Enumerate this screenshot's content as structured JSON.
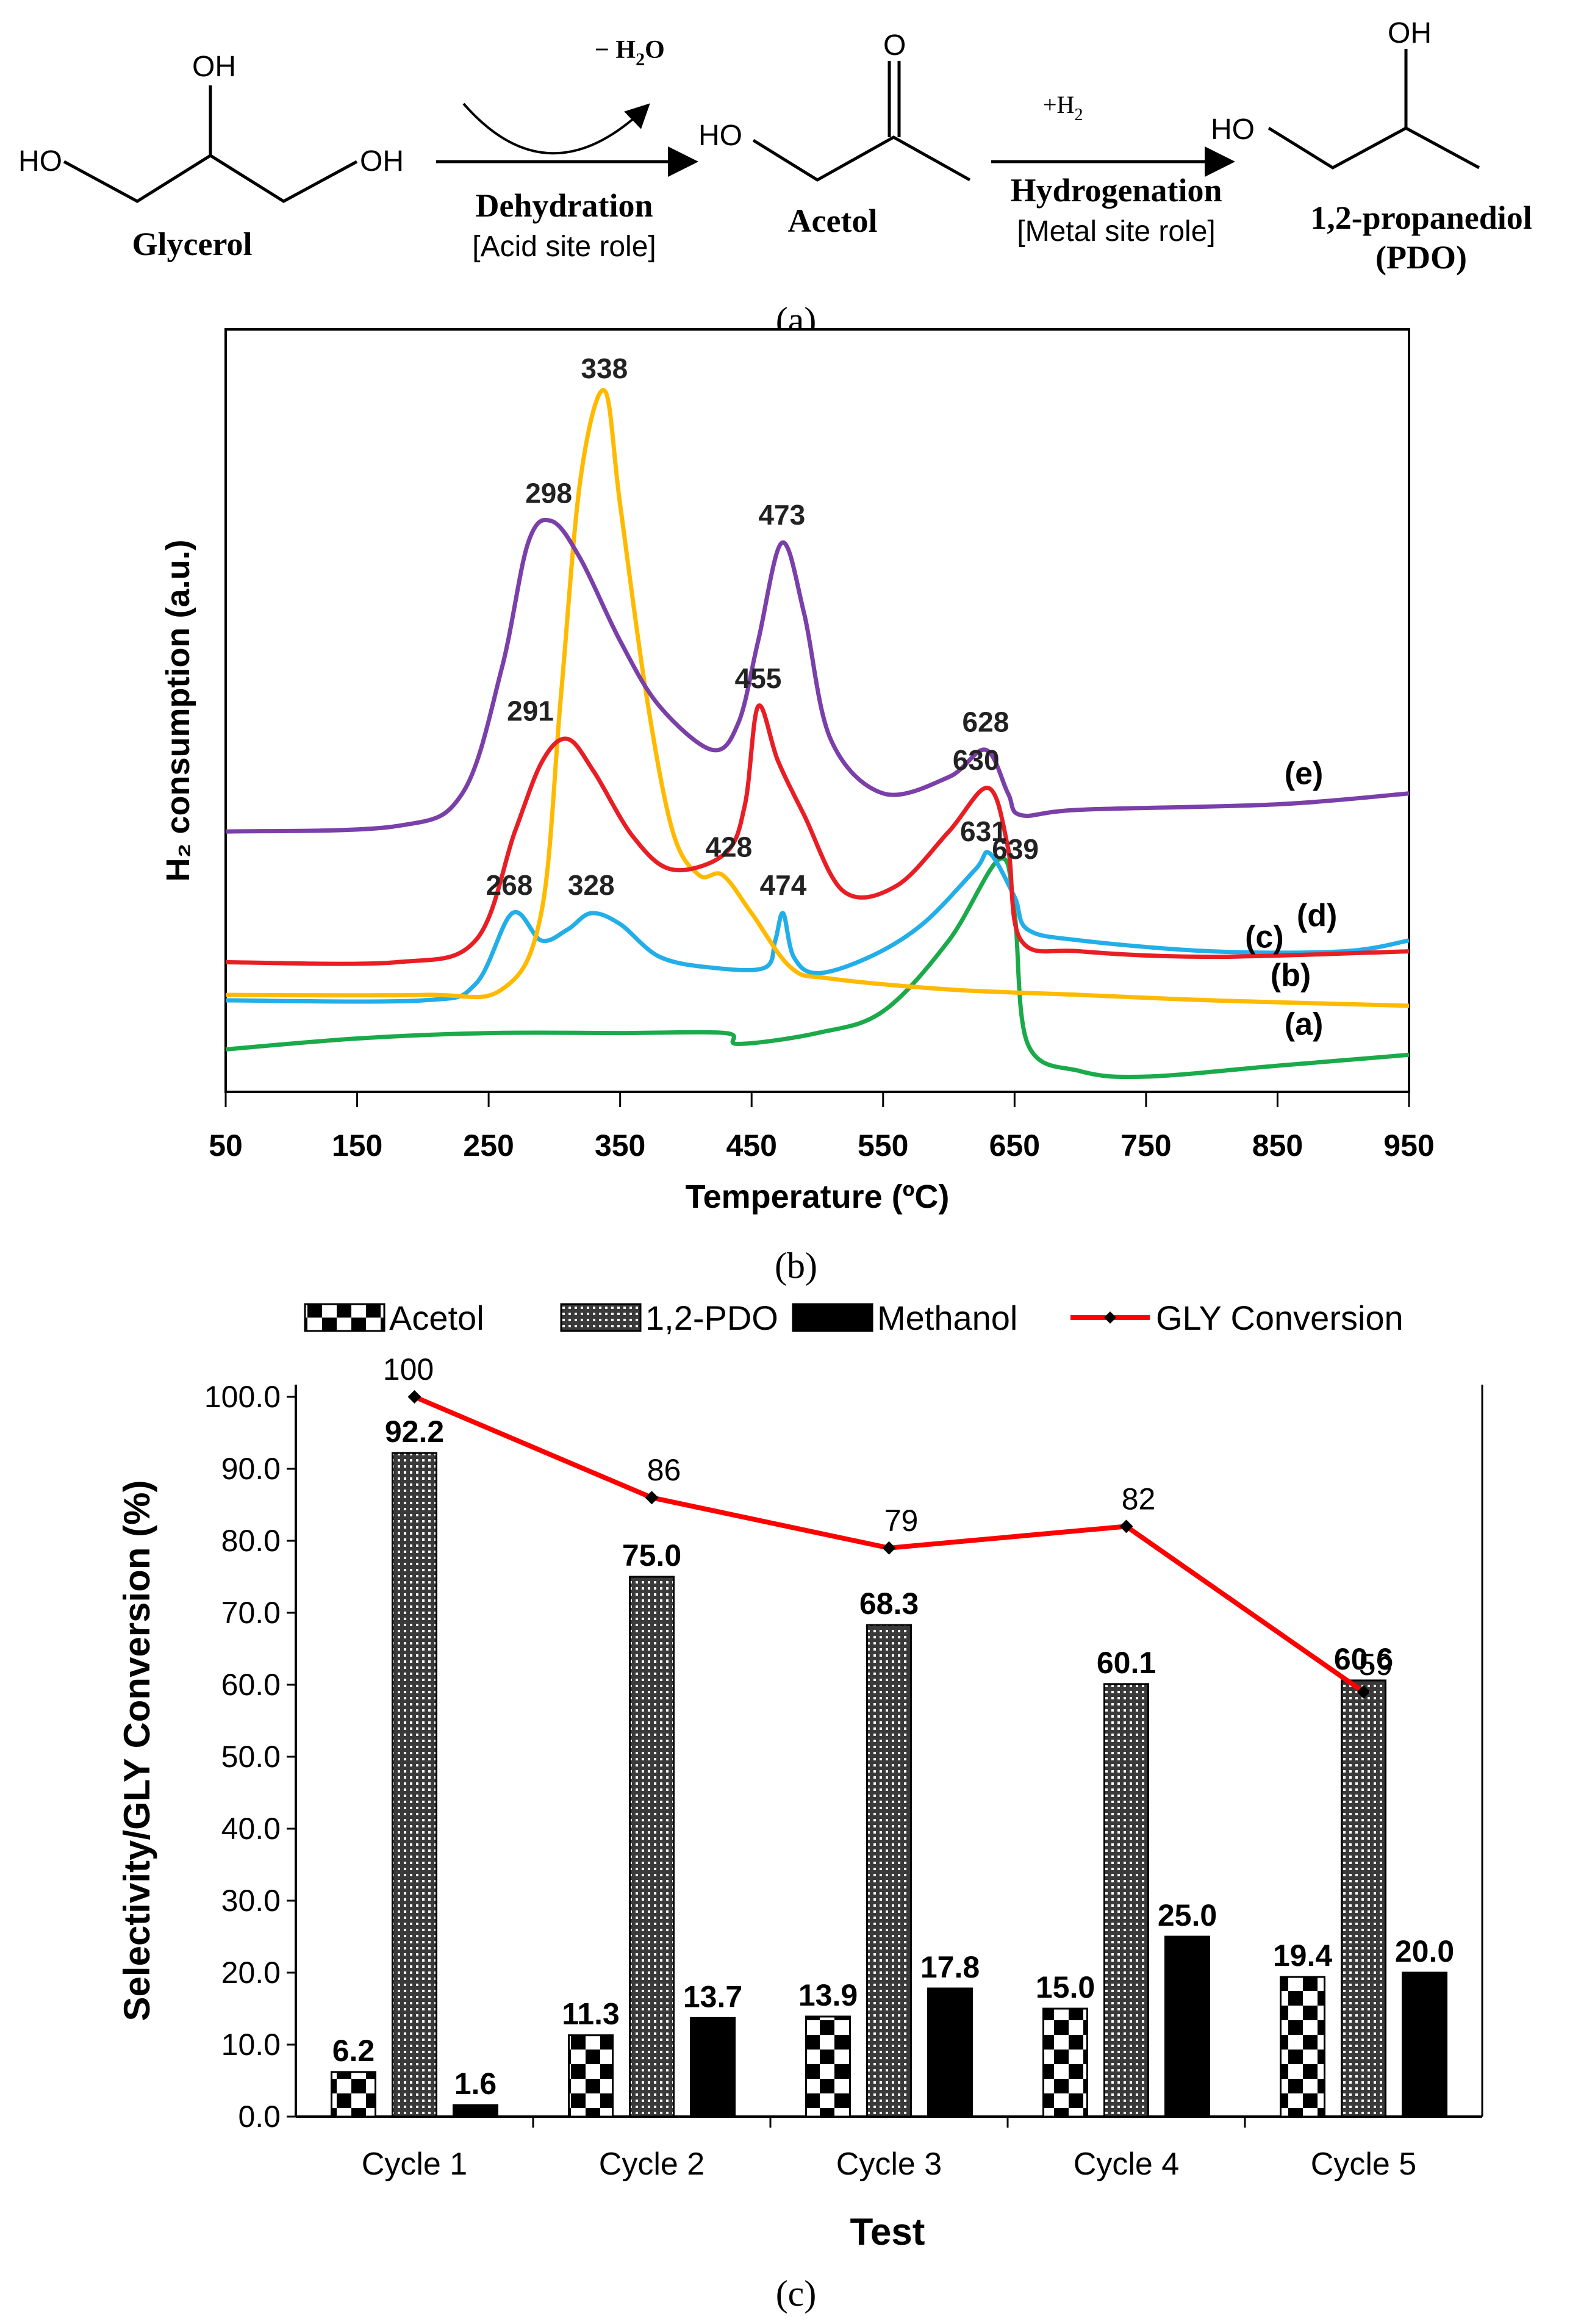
{
  "scheme": {
    "glycerol": {
      "name": "Glycerol",
      "oh_top": "OH",
      "ho_left": "HO",
      "oh_right": "OH"
    },
    "step1": {
      "byproduct": "− H",
      "byproduct_sub": "2",
      "byproduct_tail": "O",
      "name": "Dehydration",
      "role": "[Acid site role]"
    },
    "acetol": {
      "name": "Acetol",
      "o": "O",
      "ho": "HO"
    },
    "step2": {
      "reagent": "+H",
      "reagent_sub": "2",
      "name": "Hydrogenation",
      "role": "[Metal site role]"
    },
    "pdo": {
      "name": "1,2-propanediol",
      "abbr": "(PDO)",
      "oh": "OH",
      "ho": "HO"
    }
  },
  "panel_labels": {
    "a": "(a)",
    "b": "(b)",
    "c": "(c)"
  },
  "colors": {
    "a": "#1aaa4a",
    "b": "#22aee8",
    "c": "#ffba00",
    "d": "#e81e24",
    "e": "#7a3fa8",
    "conversion": "#ff0000"
  },
  "chart_data": [
    {
      "type": "line",
      "title": "",
      "xlabel": "Temperature (ºC)",
      "ylabel": "H₂ consumption (a.u.)",
      "xlim": [
        50,
        950
      ],
      "xticks": [
        50,
        150,
        250,
        350,
        450,
        550,
        650,
        750,
        850,
        950
      ],
      "series": [
        {
          "name": "(a)",
          "points": [
            [
              50,
              0.05
            ],
            [
              150,
              0.07
            ],
            [
              250,
              0.08
            ],
            [
              350,
              0.08
            ],
            [
              430,
              0.08
            ],
            [
              440,
              0.06
            ],
            [
              500,
              0.08
            ],
            [
              550,
              0.12
            ],
            [
              600,
              0.25
            ],
            [
              639,
              0.4
            ],
            [
              650,
              0.3
            ],
            [
              660,
              0.06
            ],
            [
              700,
              0.01
            ],
            [
              750,
              0.0
            ],
            [
              850,
              0.02
            ],
            [
              950,
              0.04
            ]
          ],
          "peaks": [
            639
          ]
        },
        {
          "name": "(b)",
          "points": [
            [
              50,
              0.14
            ],
            [
              200,
              0.14
            ],
            [
              240,
              0.17
            ],
            [
              268,
              0.3
            ],
            [
              290,
              0.25
            ],
            [
              310,
              0.27
            ],
            [
              328,
              0.3
            ],
            [
              350,
              0.28
            ],
            [
              380,
              0.22
            ],
            [
              420,
              0.2
            ],
            [
              460,
              0.2
            ],
            [
              468,
              0.25
            ],
            [
              474,
              0.3
            ],
            [
              482,
              0.22
            ],
            [
              500,
              0.19
            ],
            [
              540,
              0.22
            ],
            [
              580,
              0.28
            ],
            [
              620,
              0.38
            ],
            [
              631,
              0.41
            ],
            [
              650,
              0.33
            ],
            [
              660,
              0.27
            ],
            [
              700,
              0.25
            ],
            [
              800,
              0.23
            ],
            [
              900,
              0.23
            ],
            [
              950,
              0.25
            ]
          ],
          "peaks": [
            268,
            328,
            474,
            631
          ]
        },
        {
          "name": "(c)",
          "points": [
            [
              50,
              0.15
            ],
            [
              200,
              0.15
            ],
            [
              260,
              0.16
            ],
            [
              290,
              0.3
            ],
            [
              305,
              0.7
            ],
            [
              320,
              1.1
            ],
            [
              338,
              1.26
            ],
            [
              350,
              1.05
            ],
            [
              370,
              0.7
            ],
            [
              390,
              0.45
            ],
            [
              410,
              0.37
            ],
            [
              428,
              0.37
            ],
            [
              450,
              0.3
            ],
            [
              480,
              0.2
            ],
            [
              510,
              0.18
            ],
            [
              600,
              0.16
            ],
            [
              700,
              0.15
            ],
            [
              800,
              0.14
            ],
            [
              950,
              0.13
            ]
          ],
          "peaks": [
            338,
            428
          ]
        },
        {
          "name": "(d)",
          "points": [
            [
              50,
              0.21
            ],
            [
              180,
              0.21
            ],
            [
              240,
              0.25
            ],
            [
              270,
              0.45
            ],
            [
              291,
              0.58
            ],
            [
              310,
              0.62
            ],
            [
              330,
              0.56
            ],
            [
              360,
              0.44
            ],
            [
              390,
              0.38
            ],
            [
              430,
              0.41
            ],
            [
              445,
              0.5
            ],
            [
              455,
              0.68
            ],
            [
              470,
              0.58
            ],
            [
              490,
              0.48
            ],
            [
              520,
              0.34
            ],
            [
              560,
              0.35
            ],
            [
              600,
              0.45
            ],
            [
              630,
              0.53
            ],
            [
              645,
              0.42
            ],
            [
              655,
              0.25
            ],
            [
              700,
              0.23
            ],
            [
              800,
              0.22
            ],
            [
              950,
              0.23
            ]
          ],
          "peaks": [
            291,
            455,
            630
          ]
        },
        {
          "name": "(e)",
          "points": [
            [
              50,
              0.45
            ],
            [
              180,
              0.46
            ],
            [
              230,
              0.52
            ],
            [
              260,
              0.75
            ],
            [
              280,
              0.98
            ],
            [
              298,
              1.02
            ],
            [
              320,
              0.95
            ],
            [
              350,
              0.8
            ],
            [
              380,
              0.68
            ],
            [
              420,
              0.6
            ],
            [
              440,
              0.65
            ],
            [
              455,
              0.8
            ],
            [
              473,
              0.98
            ],
            [
              490,
              0.85
            ],
            [
              510,
              0.62
            ],
            [
              550,
              0.52
            ],
            [
              600,
              0.55
            ],
            [
              628,
              0.6
            ],
            [
              645,
              0.52
            ],
            [
              655,
              0.48
            ],
            [
              700,
              0.49
            ],
            [
              850,
              0.5
            ],
            [
              950,
              0.52
            ]
          ],
          "peaks": [
            298,
            473,
            628
          ]
        }
      ],
      "peak_labels": [
        "268",
        "328",
        "474",
        "631",
        "338",
        "428",
        "291",
        "455",
        "630",
        "298",
        "473",
        "628",
        "639"
      ],
      "curve_labels": [
        "(a)",
        "(b)",
        "(c)",
        "(d)",
        "(e)"
      ],
      "grid": false
    },
    {
      "type": "bar",
      "title": "",
      "xlabel": "Test",
      "ylabel": "Selectivity/GLY Conversion (%)",
      "ylim": [
        0,
        100
      ],
      "yticks": [
        "0.0",
        "10.0",
        "20.0",
        "30.0",
        "40.0",
        "50.0",
        "60.0",
        "70.0",
        "80.0",
        "90.0",
        "100.0"
      ],
      "categories": [
        "Cycle 1",
        "Cycle 2",
        "Cycle 3",
        "Cycle 4",
        "Cycle 5"
      ],
      "series": [
        {
          "name": "Acetol",
          "values": [
            6.2,
            11.3,
            13.9,
            15.0,
            19.4
          ],
          "labels": [
            "6.2",
            "11.3",
            "13.9",
            "15.0",
            "19.4"
          ]
        },
        {
          "name": "1,2-PDO",
          "values": [
            92.2,
            75.0,
            68.3,
            60.1,
            60.6
          ],
          "labels": [
            "92.2",
            "75.0",
            "68.3",
            "60.1",
            "60.6"
          ]
        },
        {
          "name": "Methanol",
          "values": [
            1.6,
            13.7,
            17.8,
            25.0,
            20.0
          ],
          "labels": [
            "1.6",
            "13.7",
            "17.8",
            "25.0",
            "20.0"
          ]
        },
        {
          "name": "GLY Conversion",
          "type": "line",
          "values": [
            100,
            86,
            79,
            82,
            59
          ],
          "labels": [
            "100",
            "86",
            "79",
            "82",
            "59"
          ]
        }
      ],
      "legend": "top",
      "grid": false
    }
  ]
}
